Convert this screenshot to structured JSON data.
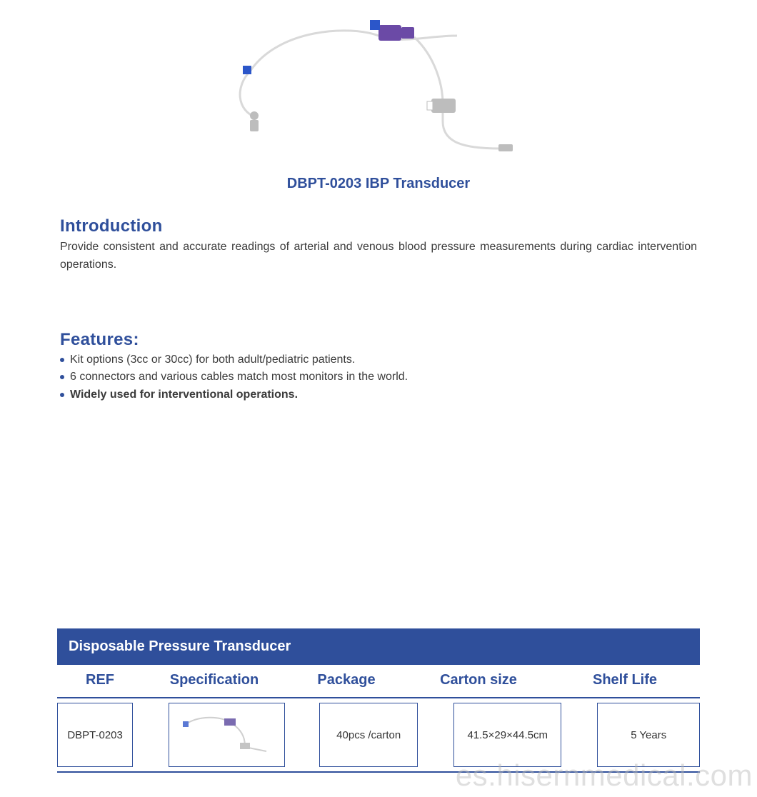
{
  "colors": {
    "brand_blue": "#2f4f9b",
    "text_dark": "#3a3a3a",
    "bullet": "#2f4f9b",
    "banner_bg": "#2f4f9b",
    "banner_text": "#ffffff",
    "cell_border": "#2f4f9b",
    "hr": "#2f4f9b",
    "watermark": "#b9b9b9",
    "tube": "#d9d9d9",
    "connector_blue": "#2b56c9",
    "connector_purple": "#6b4aa6",
    "plug_grey": "#bdbdbd"
  },
  "product": {
    "title": "DBPT-0203 IBP Transducer",
    "title_fontsize": 20,
    "title_color": "#2f4f9b"
  },
  "introduction": {
    "heading": "Introduction",
    "heading_fontsize": 24,
    "heading_color": "#2f4f9b",
    "body": "Provide consistent and accurate readings of arterial and venous blood pressure measurements during cardiac intervention operations.",
    "body_fontsize": 16,
    "body_color": "#3a3a3a"
  },
  "features": {
    "heading": "Features:",
    "heading_fontsize": 24,
    "heading_color": "#2f4f9b",
    "items": [
      {
        "text": "Kit options (3cc or 30cc) for both adult/pediatric patients.",
        "bold": false
      },
      {
        "text": "6 connectors and various cables match most monitors in the world.",
        "bold": false
      },
      {
        "text": "Widely used for interventional operations.",
        "bold": true
      }
    ],
    "item_fontsize": 16
  },
  "table": {
    "banner": "Disposable Pressure Transducer",
    "banner_fontsize": 20,
    "headers": {
      "ref": "REF",
      "spec": "Specification",
      "pkg": "Package",
      "carton": "Carton  size",
      "shelf": "Shelf Life"
    },
    "header_fontsize": 20,
    "header_color": "#2f4f9b",
    "row": {
      "ref": "DBPT-0203",
      "pkg": "40pcs /carton",
      "carton": "41.5×29×44.5cm",
      "shelf": "5 Years"
    },
    "cell_fontsize": 15
  },
  "watermark": {
    "text": "es.hisernmedical.com",
    "fontsize": 42
  }
}
